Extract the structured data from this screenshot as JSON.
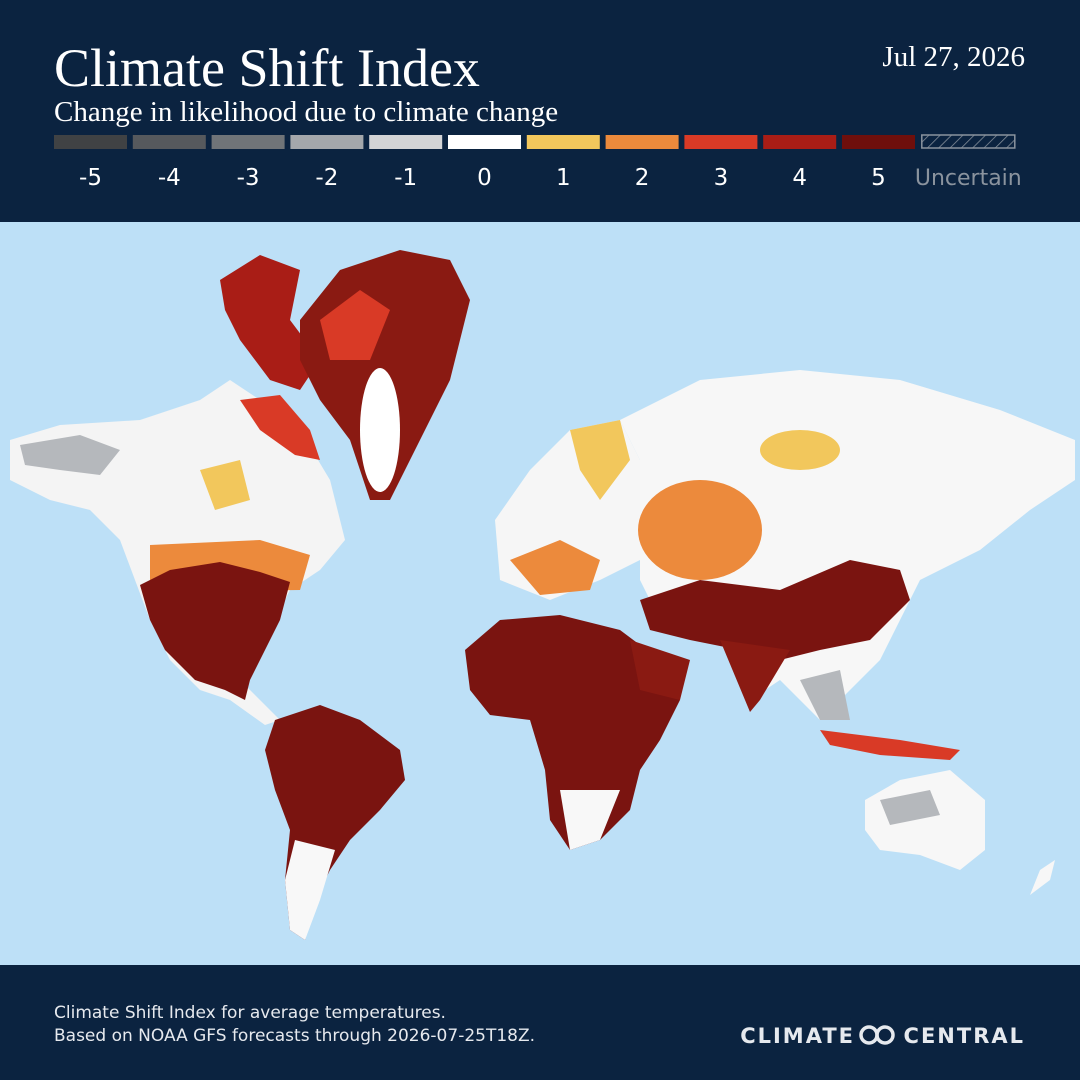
{
  "header": {
    "title": "Climate Shift Index",
    "subtitle": "Change in likelihood due to climate change",
    "date": "Jul 27, 2026"
  },
  "legend": [
    {
      "label": "-5",
      "color": "#404244"
    },
    {
      "label": "-4",
      "color": "#56595d"
    },
    {
      "label": "-3",
      "color": "#707478"
    },
    {
      "label": "-2",
      "color": "#a4a7ab"
    },
    {
      "label": "-1",
      "color": "#d3d4d6"
    },
    {
      "label": "0",
      "color": "#ffffff"
    },
    {
      "label": "1",
      "color": "#f2c75c"
    },
    {
      "label": "2",
      "color": "#ec8a3c"
    },
    {
      "label": "3",
      "color": "#d93a26"
    },
    {
      "label": "4",
      "color": "#a91d16"
    },
    {
      "label": "5",
      "color": "#6f0f0c"
    },
    {
      "label": "Uncertain",
      "color": "#8a939e",
      "hatched": true
    }
  ],
  "footer": {
    "lines": [
      "Climate Shift Index for average temperatures.",
      "Based on NOAA GFS forecasts through 2026-07-25T18Z."
    ],
    "logo": [
      "CLIMATE",
      "CENTRAL"
    ]
  }
}
